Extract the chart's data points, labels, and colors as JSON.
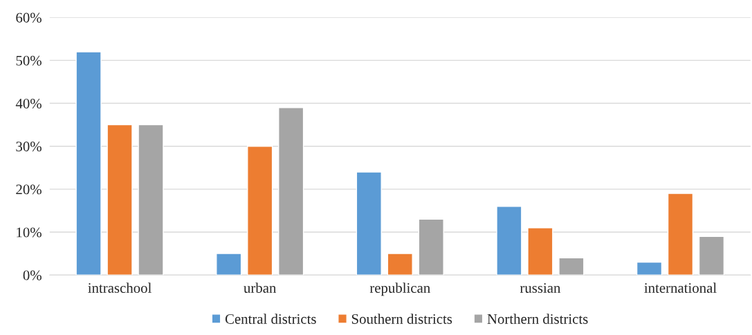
{
  "chart_data": {
    "type": "bar",
    "categories": [
      "intraschool",
      "urban",
      "republican",
      "russian",
      "international"
    ],
    "series": [
      {
        "name": "Central districts",
        "color": "#5b9bd5",
        "values": [
          52,
          5,
          24,
          16,
          3
        ]
      },
      {
        "name": "Southern districts",
        "color": "#ed7d31",
        "values": [
          35,
          30,
          5,
          11,
          19
        ]
      },
      {
        "name": "Northern districts",
        "color": "#a5a5a5",
        "values": [
          35,
          39,
          13,
          4,
          9
        ]
      }
    ],
    "ylim": [
      0,
      60
    ],
    "yticks": [
      {
        "value": 0,
        "label": "0%"
      },
      {
        "value": 10,
        "label": "10%"
      },
      {
        "value": 20,
        "label": "20%"
      },
      {
        "value": 30,
        "label": "30%"
      },
      {
        "value": 40,
        "label": "40%"
      },
      {
        "value": 50,
        "label": "50%"
      },
      {
        "value": 60,
        "label": "60%"
      }
    ],
    "grid": "y",
    "legend": "bottom"
  }
}
